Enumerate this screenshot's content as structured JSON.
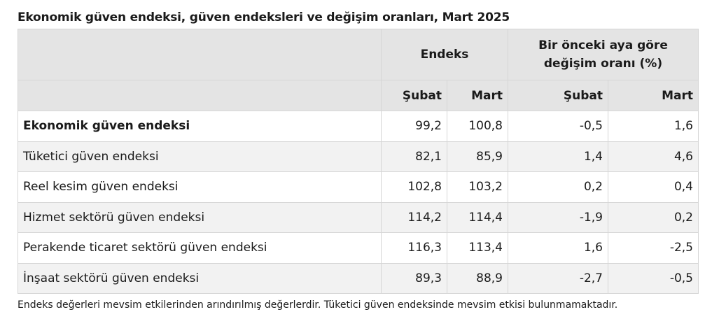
{
  "title": "Ekonomik güven endeksi, güven endeksleri ve değişim oranları, Mart 2025",
  "header": {
    "group_index": "Endeks",
    "group_change_line1": "Bir önceki aya göre",
    "group_change_line2": "değişim oranı (%)",
    "cols": [
      "Şubat",
      "Mart",
      "Şubat",
      "Mart"
    ]
  },
  "rows": [
    {
      "label": "Ekonomik güven endeksi",
      "v": [
        "99,2",
        "100,8",
        "-0,5",
        "1,6"
      ]
    },
    {
      "label": "Tüketici güven endeksi",
      "v": [
        "82,1",
        "85,9",
        "1,4",
        "4,6"
      ]
    },
    {
      "label": "Reel kesim güven endeksi",
      "v": [
        "102,8",
        "103,2",
        "0,2",
        "0,4"
      ]
    },
    {
      "label": "Hizmet sektörü güven endeksi",
      "v": [
        "114,2",
        "114,4",
        "-1,9",
        "0,2"
      ]
    },
    {
      "label": "Perakende ticaret sektörü güven endeksi",
      "v": [
        "116,3",
        "113,4",
        "1,6",
        "-2,5"
      ]
    },
    {
      "label": "İnşaat sektörü güven endeksi",
      "v": [
        "89,3",
        "88,9",
        "-2,7",
        "-0,5"
      ]
    }
  ],
  "note": "Endeks değerleri mevsim etkilerinden arındırılmış değerlerdir. Tüketici güven endeksinde mevsim etkisi bulunmamaktadır."
}
